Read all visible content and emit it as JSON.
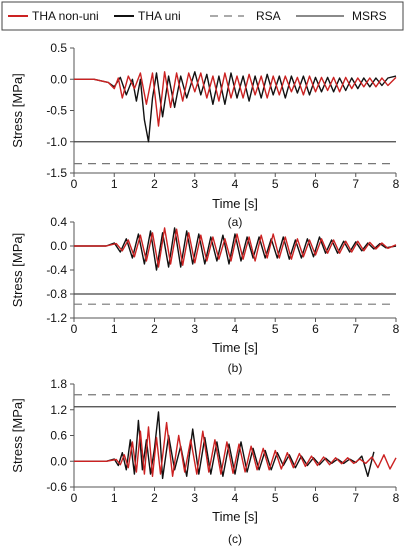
{
  "legend": {
    "entries": [
      {
        "label": "THA non-uni",
        "series": "THA non-uni"
      },
      {
        "label": "THA uni",
        "series": "THA uni"
      },
      {
        "label": "RSA",
        "series": "RSA"
      },
      {
        "label": "MSRS",
        "series": "MSRS"
      }
    ]
  },
  "colors": {
    "THA non-uni": "#cc2222",
    "THA uni": "#111111",
    "RSA": "#777777",
    "MSRS": "#444444",
    "axis": "#555555"
  },
  "chart_data": [
    {
      "type": "line",
      "caption": "(a)",
      "xlabel": "Time [s]",
      "ylabel": "Stress [MPa]",
      "xlim": [
        0,
        8
      ],
      "ylim": [
        -1.5,
        0.5
      ],
      "xticks": [
        "0",
        "1",
        "2",
        "3",
        "4",
        "5",
        "6",
        "7",
        "8"
      ],
      "yticks": [
        "0.5",
        "0.0",
        "-0.5",
        "-1.0",
        "-1.5"
      ],
      "yticks_values": [
        0.5,
        0.0,
        -0.5,
        -1.0,
        -1.5
      ],
      "reference_lines": [
        {
          "name": "MSRS",
          "y": -1.0,
          "style": "solid"
        },
        {
          "name": "RSA",
          "y": -1.35,
          "style": "dashed"
        }
      ],
      "series": [
        {
          "name": "THA uni",
          "x": [
            0.0,
            0.5,
            0.85,
            1.0,
            1.15,
            1.3,
            1.45,
            1.55,
            1.65,
            1.75,
            1.85,
            1.95,
            2.05,
            2.2,
            2.35,
            2.5,
            2.65,
            2.8,
            3.0,
            3.15,
            3.3,
            3.45,
            3.6,
            3.75,
            3.9,
            4.05,
            4.2,
            4.35,
            4.5,
            4.65,
            4.8,
            4.95,
            5.1,
            5.25,
            5.4,
            5.55,
            5.7,
            5.85,
            6.0,
            6.15,
            6.3,
            6.45,
            6.6,
            6.75,
            6.9,
            7.05,
            7.2,
            7.35,
            7.5,
            7.65,
            7.8,
            8.0
          ],
          "y": [
            0.0,
            0.0,
            -0.05,
            -0.12,
            0.03,
            -0.25,
            0.0,
            -0.35,
            0.0,
            -0.65,
            -1.0,
            -0.3,
            0.1,
            -0.6,
            0.05,
            -0.45,
            0.05,
            -0.3,
            0.12,
            -0.25,
            0.08,
            -0.4,
            0.05,
            -0.4,
            0.1,
            -0.3,
            0.05,
            -0.35,
            0.05,
            -0.3,
            0.08,
            -0.25,
            0.05,
            -0.3,
            0.05,
            -0.22,
            0.05,
            -0.25,
            0.03,
            -0.2,
            0.03,
            -0.2,
            0.02,
            -0.18,
            0.02,
            -0.15,
            0.02,
            -0.12,
            0.02,
            -0.1,
            0.02,
            0.05
          ]
        },
        {
          "name": "THA non-uni",
          "x": [
            0.0,
            0.5,
            0.85,
            1.0,
            1.1,
            1.2,
            1.35,
            1.5,
            1.65,
            1.8,
            1.95,
            2.1,
            2.25,
            2.4,
            2.55,
            2.7,
            2.85,
            3.0,
            3.15,
            3.3,
            3.45,
            3.6,
            3.75,
            3.9,
            4.05,
            4.2,
            4.35,
            4.5,
            4.65,
            4.8,
            4.95,
            5.1,
            5.25,
            5.4,
            5.55,
            5.7,
            5.85,
            6.0,
            6.15,
            6.3,
            6.45,
            6.6,
            6.75,
            6.9,
            7.05,
            7.2,
            7.35,
            7.5,
            7.65,
            7.8,
            8.0
          ],
          "y": [
            0.0,
            0.0,
            -0.05,
            -0.15,
            0.02,
            -0.3,
            0.05,
            -0.15,
            0.1,
            -0.4,
            0.1,
            -0.75,
            0.12,
            -0.45,
            0.1,
            -0.35,
            0.1,
            -0.2,
            0.1,
            -0.3,
            0.05,
            -0.35,
            0.1,
            -0.3,
            0.05,
            -0.3,
            0.08,
            -0.25,
            0.05,
            -0.3,
            0.05,
            -0.25,
            0.05,
            -0.2,
            0.03,
            -0.25,
            0.05,
            -0.2,
            0.03,
            -0.18,
            0.03,
            -0.2,
            0.03,
            -0.15,
            0.02,
            -0.12,
            0.02,
            -0.12,
            0.02,
            -0.1,
            0.03
          ]
        }
      ]
    },
    {
      "type": "line",
      "caption": "(b)",
      "xlabel": "Time [s]",
      "ylabel": "Stress [MPa]",
      "xlim": [
        0,
        8
      ],
      "ylim": [
        -1.2,
        0.4
      ],
      "xticks": [
        "0",
        "1",
        "2",
        "3",
        "4",
        "5",
        "6",
        "7",
        "8"
      ],
      "yticks": [
        "0.4",
        "0.0",
        "-0.4",
        "-0.8",
        "-1.2"
      ],
      "yticks_values": [
        0.4,
        0.0,
        -0.4,
        -0.8,
        -1.2
      ],
      "reference_lines": [
        {
          "name": "MSRS",
          "y": -0.8,
          "style": "solid"
        },
        {
          "name": "RSA",
          "y": -0.97,
          "style": "dashed"
        }
      ],
      "series": [
        {
          "name": "THA uni",
          "x": [
            0.0,
            0.8,
            1.0,
            1.15,
            1.3,
            1.45,
            1.6,
            1.75,
            1.9,
            2.05,
            2.2,
            2.35,
            2.5,
            2.65,
            2.8,
            2.95,
            3.1,
            3.25,
            3.4,
            3.55,
            3.7,
            3.85,
            4.0,
            4.15,
            4.3,
            4.45,
            4.6,
            4.75,
            4.9,
            5.05,
            5.2,
            5.35,
            5.5,
            5.65,
            5.8,
            5.95,
            6.1,
            6.25,
            6.4,
            6.55,
            6.7,
            6.85,
            7.0,
            7.15,
            7.3,
            7.45,
            7.6,
            7.75,
            8.0
          ],
          "y": [
            0.0,
            0.0,
            0.05,
            -0.1,
            0.12,
            -0.2,
            0.2,
            -0.3,
            0.25,
            -0.4,
            0.22,
            -0.35,
            0.3,
            -0.35,
            0.25,
            -0.3,
            0.2,
            -0.3,
            0.15,
            -0.25,
            0.18,
            -0.3,
            0.2,
            -0.25,
            0.15,
            -0.2,
            0.15,
            -0.2,
            0.12,
            -0.2,
            0.15,
            -0.22,
            0.1,
            -0.2,
            0.12,
            -0.18,
            0.15,
            -0.12,
            0.1,
            -0.12,
            0.08,
            -0.1,
            0.07,
            -0.08,
            0.05,
            -0.05,
            0.04,
            -0.03,
            0.0
          ]
        },
        {
          "name": "THA non-uni",
          "x": [
            0.0,
            0.8,
            1.05,
            1.2,
            1.35,
            1.5,
            1.65,
            1.8,
            1.95,
            2.1,
            2.25,
            2.4,
            2.55,
            2.7,
            2.85,
            3.0,
            3.15,
            3.3,
            3.45,
            3.6,
            3.75,
            3.9,
            4.05,
            4.2,
            4.35,
            4.5,
            4.65,
            4.8,
            4.95,
            5.1,
            5.25,
            5.4,
            5.55,
            5.7,
            5.85,
            6.0,
            6.15,
            6.3,
            6.45,
            6.6,
            6.75,
            6.9,
            7.05,
            7.2,
            7.35,
            7.5,
            7.65,
            7.8,
            8.0
          ],
          "y": [
            0.0,
            0.0,
            0.04,
            -0.08,
            0.1,
            -0.18,
            0.18,
            -0.25,
            0.22,
            -0.35,
            0.3,
            -0.3,
            0.28,
            -0.32,
            0.22,
            -0.28,
            0.18,
            -0.25,
            0.15,
            -0.22,
            0.12,
            -0.25,
            0.2,
            -0.22,
            0.15,
            -0.25,
            0.18,
            -0.2,
            0.2,
            -0.2,
            0.15,
            -0.22,
            0.12,
            -0.18,
            0.1,
            -0.15,
            0.12,
            -0.12,
            0.1,
            -0.12,
            0.08,
            -0.1,
            0.08,
            -0.08,
            0.06,
            -0.05,
            0.05,
            -0.04,
            0.02
          ]
        }
      ]
    },
    {
      "type": "line",
      "caption": "(c)",
      "xlabel": "Time [s]",
      "ylabel": "Stress [MPa]",
      "xlim": [
        0,
        8
      ],
      "ylim": [
        -0.6,
        1.8
      ],
      "xticks": [
        "0",
        "1",
        "2",
        "3",
        "4",
        "5",
        "6",
        "7",
        "8"
      ],
      "yticks": [
        "1.8",
        "1.2",
        "0.6",
        "0.0",
        "-0.6"
      ],
      "yticks_values": [
        1.8,
        1.2,
        0.6,
        0.0,
        -0.6
      ],
      "reference_lines": [
        {
          "name": "MSRS",
          "y": 1.27,
          "style": "solid"
        },
        {
          "name": "RSA",
          "y": 1.55,
          "style": "dashed"
        }
      ],
      "series": [
        {
          "name": "THA uni",
          "x": [
            0.0,
            0.8,
            1.0,
            1.1,
            1.2,
            1.3,
            1.4,
            1.5,
            1.6,
            1.7,
            1.8,
            1.9,
            2.0,
            2.1,
            2.2,
            2.35,
            2.5,
            2.65,
            2.8,
            2.95,
            3.1,
            3.25,
            3.4,
            3.55,
            3.7,
            3.85,
            4.0,
            4.15,
            4.3,
            4.45,
            4.6,
            4.75,
            4.9,
            5.05,
            5.2,
            5.35,
            5.5,
            5.65,
            5.8,
            5.95,
            6.1,
            6.25,
            6.4,
            6.55,
            6.7,
            6.85,
            7.0,
            7.15,
            7.3,
            7.45
          ],
          "y": [
            0.0,
            0.0,
            0.05,
            -0.1,
            0.2,
            -0.2,
            0.5,
            -0.3,
            0.95,
            -0.2,
            0.5,
            -0.3,
            0.3,
            1.15,
            -0.4,
            0.6,
            -0.2,
            0.35,
            -0.35,
            0.75,
            -0.3,
            0.55,
            -0.3,
            0.45,
            -0.35,
            0.4,
            -0.3,
            0.45,
            -0.25,
            0.3,
            -0.2,
            0.25,
            -0.2,
            0.2,
            -0.1,
            0.15,
            -0.15,
            0.12,
            -0.1,
            0.08,
            -0.08,
            0.07,
            -0.05,
            0.05,
            -0.05,
            0.05,
            -0.03,
            0.12,
            -0.35,
            0.22
          ]
        },
        {
          "name": "THA non-uni",
          "x": [
            0.0,
            0.8,
            1.05,
            1.15,
            1.25,
            1.35,
            1.45,
            1.55,
            1.65,
            1.75,
            1.85,
            1.95,
            2.05,
            2.15,
            2.3,
            2.45,
            2.6,
            2.75,
            2.9,
            3.05,
            3.2,
            3.35,
            3.5,
            3.65,
            3.8,
            3.95,
            4.1,
            4.25,
            4.4,
            4.55,
            4.7,
            4.85,
            5.0,
            5.15,
            5.3,
            5.45,
            5.6,
            5.75,
            5.9,
            6.05,
            6.2,
            6.35,
            6.5,
            6.65,
            6.8,
            6.95,
            7.1,
            7.25,
            7.4,
            7.55,
            7.7,
            7.85,
            8.0
          ],
          "y": [
            0.0,
            0.0,
            0.04,
            -0.08,
            0.15,
            -0.15,
            0.45,
            -0.25,
            0.7,
            -0.3,
            0.8,
            -0.35,
            0.55,
            -0.3,
            0.9,
            -0.35,
            0.6,
            -0.25,
            0.5,
            -0.3,
            0.7,
            -0.25,
            0.5,
            -0.3,
            0.45,
            -0.28,
            0.4,
            -0.25,
            0.35,
            -0.2,
            0.3,
            -0.2,
            0.25,
            -0.18,
            0.2,
            -0.15,
            0.18,
            -0.12,
            0.12,
            -0.1,
            0.1,
            -0.08,
            0.08,
            -0.06,
            0.08,
            -0.05,
            0.05,
            -0.05,
            0.1,
            -0.15,
            0.15,
            -0.18,
            0.08
          ]
        }
      ]
    }
  ]
}
